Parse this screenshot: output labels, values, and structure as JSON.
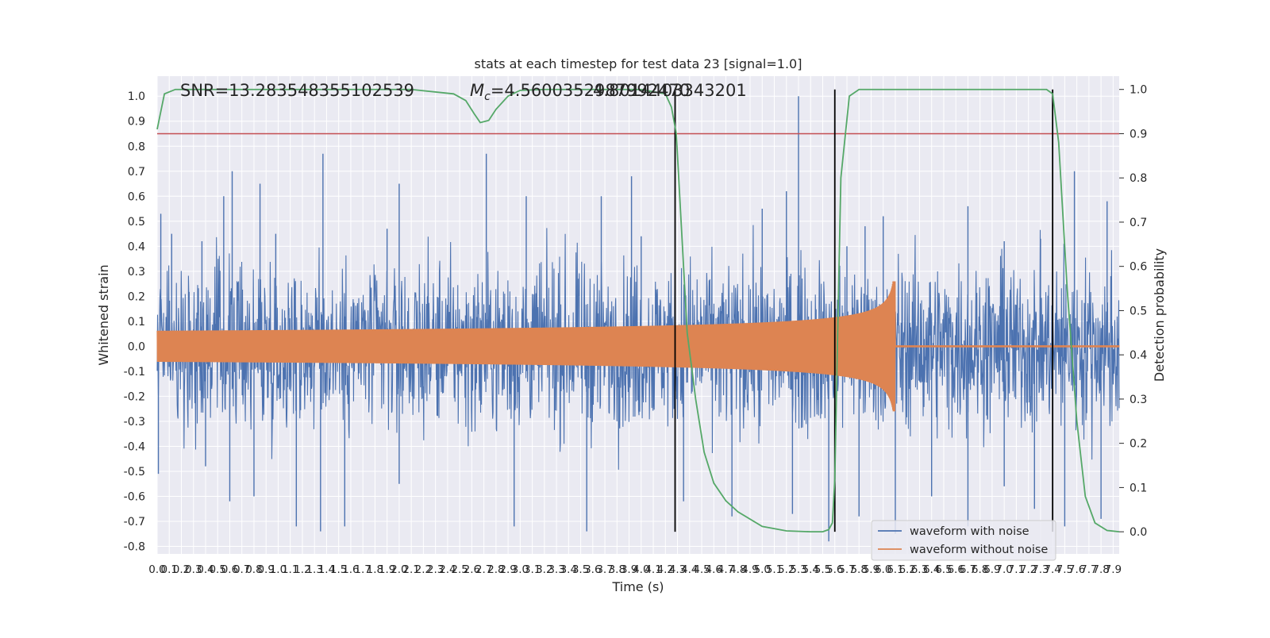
{
  "chart_data": {
    "type": "line",
    "title": "stats at each timestep for test data 23 [signal=1.0]",
    "xlabel": "Time (s)",
    "ylabel": "Whitened strain",
    "y2label": "Detection probability",
    "xlim": [
      0.0,
      7.95
    ],
    "ylim": [
      -0.83,
      1.08
    ],
    "y2lim": [
      -0.05,
      1.03
    ],
    "x_tick_step": 0.1,
    "x_ticks_count": 80,
    "y_ticks": [
      -0.8,
      -0.7,
      -0.6,
      -0.5,
      -0.4,
      -0.3,
      -0.2,
      -0.1,
      0.0,
      0.1,
      0.2,
      0.3,
      0.4,
      0.5,
      0.6,
      0.7,
      0.8,
      0.9,
      1.0
    ],
    "y2_ticks": [
      0.0,
      0.1,
      0.2,
      0.3,
      0.4,
      0.5,
      0.6,
      0.7,
      0.8,
      0.9,
      1.0
    ],
    "grid": true,
    "legend_position": "lower-right",
    "annotations": {
      "snr": "SNR=13.283548355102539",
      "mc_symbol": "M",
      "mc_subscript": "c",
      "mc_value": "=4.5600352987992470",
      "mc_overlap": "4.8014403343201"
    },
    "threshold": {
      "value": 0.9,
      "axis": "right",
      "color": "#c44e52"
    },
    "detection_markers": [
      4.28,
      5.6,
      7.4
    ],
    "series": [
      {
        "name": "waveform with noise",
        "color": "#4c72b0",
        "kind": "noise",
        "typical_envelope": 0.3,
        "peaks": [
          [
            0.03,
            0.53
          ],
          [
            0.12,
            0.45
          ],
          [
            0.37,
            0.42
          ],
          [
            0.55,
            0.6
          ],
          [
            0.62,
            0.7
          ],
          [
            0.85,
            0.65
          ],
          [
            0.98,
            0.45
          ],
          [
            1.37,
            0.77
          ],
          [
            1.9,
            0.47
          ],
          [
            2.0,
            0.65
          ],
          [
            2.72,
            0.77
          ],
          [
            3.05,
            0.6
          ],
          [
            3.67,
            0.6
          ],
          [
            3.92,
            0.68
          ],
          [
            4.0,
            0.44
          ],
          [
            5.0,
            0.55
          ],
          [
            5.2,
            0.62
          ],
          [
            5.3,
            1.0
          ],
          [
            5.7,
            0.4
          ],
          [
            5.85,
            0.48
          ],
          [
            6.0,
            0.52
          ],
          [
            6.7,
            0.56
          ],
          [
            7.0,
            0.42
          ],
          [
            7.3,
            0.43
          ],
          [
            7.58,
            0.7
          ],
          [
            7.85,
            0.58
          ],
          [
            0.01,
            -0.51
          ],
          [
            0.4,
            -0.48
          ],
          [
            0.6,
            -0.62
          ],
          [
            0.8,
            -0.6
          ],
          [
            1.15,
            -0.72
          ],
          [
            1.35,
            -0.74
          ],
          [
            1.55,
            -0.72
          ],
          [
            2.0,
            -0.55
          ],
          [
            2.95,
            -0.72
          ],
          [
            3.55,
            -0.74
          ],
          [
            4.35,
            -0.62
          ],
          [
            4.75,
            -0.68
          ],
          [
            5.25,
            -0.67
          ],
          [
            5.55,
            -0.78
          ],
          [
            5.8,
            -0.68
          ],
          [
            6.1,
            -0.75
          ],
          [
            6.4,
            -0.6
          ],
          [
            6.7,
            -0.72
          ],
          [
            7.0,
            -0.56
          ],
          [
            7.25,
            -0.65
          ],
          [
            7.5,
            -0.72
          ],
          [
            7.8,
            -0.69
          ]
        ]
      },
      {
        "name": "waveform without noise",
        "color": "#dd8452",
        "kind": "chirp",
        "merger_time": 6.1,
        "amplitude_at_start": 0.03,
        "amplitude_at_merger": 0.26,
        "ringdown_amplitude": 0.004
      },
      {
        "name": "",
        "axis": "right",
        "color": "#55a868",
        "x": [
          0.0,
          0.06,
          0.15,
          0.3,
          1.0,
          1.5,
          2.0,
          2.1,
          2.45,
          2.55,
          2.62,
          2.67,
          2.74,
          2.8,
          2.9,
          3.0,
          3.2,
          3.5,
          4.0,
          4.2,
          4.25,
          4.29,
          4.33,
          4.38,
          4.45,
          4.52,
          4.6,
          4.7,
          4.8,
          5.0,
          5.2,
          5.4,
          5.5,
          5.55,
          5.58,
          5.6,
          5.62,
          5.65,
          5.72,
          5.8,
          6.0,
          7.0,
          7.35,
          7.4,
          7.45,
          7.52,
          7.6,
          7.67,
          7.75,
          7.85,
          7.95
        ],
        "y": [
          0.91,
          0.99,
          1.0,
          1.0,
          1.0,
          1.0,
          1.0,
          1.0,
          0.99,
          0.975,
          0.945,
          0.925,
          0.93,
          0.955,
          0.985,
          0.998,
          1.0,
          1.0,
          1.0,
          0.99,
          0.96,
          0.9,
          0.7,
          0.45,
          0.3,
          0.18,
          0.11,
          0.07,
          0.045,
          0.012,
          0.002,
          0.0,
          0.0,
          0.005,
          0.02,
          0.12,
          0.4,
          0.8,
          0.985,
          1.0,
          1.0,
          1.0,
          1.0,
          0.99,
          0.88,
          0.55,
          0.25,
          0.08,
          0.02,
          0.003,
          0.0
        ]
      }
    ]
  }
}
